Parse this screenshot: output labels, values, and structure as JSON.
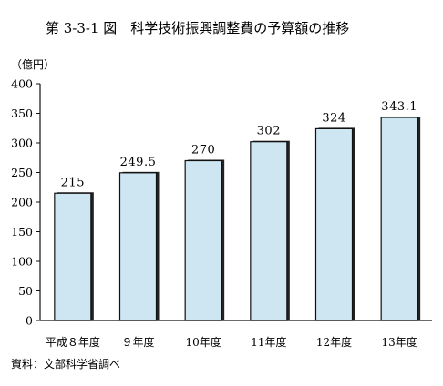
{
  "title": "第 3-3-1 図　科学技術振興調整費の予算額の推移",
  "source": "資料：文部科学省調べ",
  "colors": {
    "bar_fill": "#cde6f2",
    "bar_stroke": "#111111",
    "bar_shadow": "#222222",
    "axis": "#111111"
  },
  "chart_data": {
    "type": "bar",
    "title": "第 3-3-1 図　科学技術振興調整費の予算額の推移",
    "ylabel": "（億円）",
    "xlabel": "",
    "ylim": [
      0,
      400
    ],
    "yticks": [
      0,
      50,
      100,
      150,
      200,
      250,
      300,
      350,
      400
    ],
    "categories": [
      "平成８年度",
      "９年度",
      "10年度",
      "11年度",
      "12年度",
      "13年度"
    ],
    "values": [
      215,
      249.5,
      270,
      302,
      324,
      343.1
    ],
    "data_labels": [
      "215",
      "249.5",
      "270",
      "302",
      "324",
      "343.1"
    ],
    "grid": false,
    "legend": "none"
  }
}
